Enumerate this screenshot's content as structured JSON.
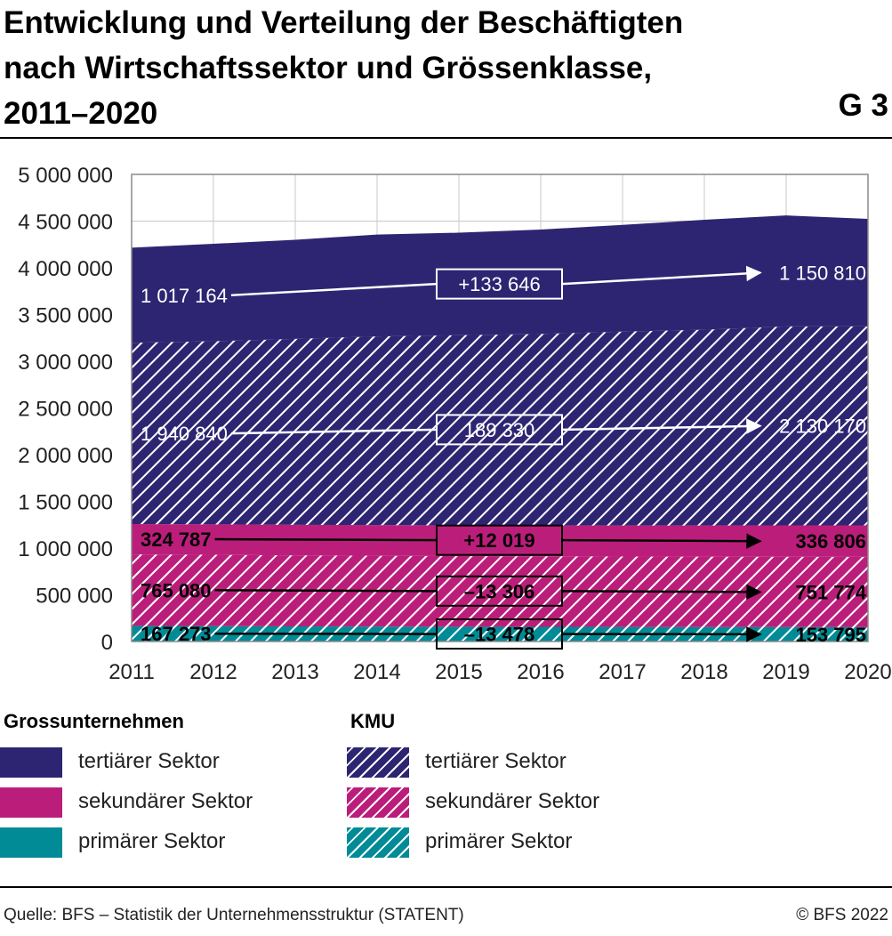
{
  "title_lines": [
    "Entwicklung und Verteilung der Beschäftigten",
    "nach Wirtschaftssektor und Grössenklasse,",
    "2011–2020"
  ],
  "figure_number": "G 3",
  "colors": {
    "tertiary": "#2e2572",
    "secondary": "#bb1e7a",
    "primary": "#008b96"
  },
  "chart_data": {
    "type": "area",
    "stacked": true,
    "x": [
      2011,
      2012,
      2013,
      2014,
      2015,
      2016,
      2017,
      2018,
      2019,
      2020
    ],
    "ylim": [
      0,
      5000000
    ],
    "yticks": [
      0,
      500000,
      1000000,
      1500000,
      2000000,
      2500000,
      3000000,
      3500000,
      4000000,
      4500000,
      5000000
    ],
    "ytick_labels": [
      "0",
      "500 000",
      "1 000 000",
      "1 500 000",
      "2 000 000",
      "2 500 000",
      "3 000 000",
      "3 500 000",
      "4 000 000",
      "4 500 000",
      "5 000 000"
    ],
    "grid": true,
    "series": [
      {
        "group": "KMU",
        "name": "primärer Sektor",
        "color": "#008b96",
        "hatched": true,
        "values": [
          167273,
          165000,
          162000,
          160000,
          158000,
          157000,
          156000,
          155000,
          154500,
          153795
        ]
      },
      {
        "group": "KMU",
        "name": "sekundärer Sektor",
        "color": "#bb1e7a",
        "hatched": true,
        "values": [
          765080,
          763000,
          760000,
          758000,
          756000,
          755000,
          754000,
          753000,
          752500,
          751774
        ]
      },
      {
        "group": "Grossunternehmen",
        "name": "sekundärer Sektor",
        "color": "#bb1e7a",
        "hatched": false,
        "values": [
          324787,
          326000,
          327000,
          328000,
          329000,
          330000,
          332000,
          334000,
          335500,
          336806
        ]
      },
      {
        "group": "KMU",
        "name": "tertiärer Sektor",
        "color": "#2e2572",
        "hatched": true,
        "values": [
          1940840,
          1960000,
          1990000,
          2020000,
          2035000,
          2050000,
          2075000,
          2095000,
          2130000,
          2130170
        ]
      },
      {
        "group": "Grossunternehmen",
        "name": "tertiärer Sektor",
        "color": "#2e2572",
        "hatched": false,
        "values": [
          1017164,
          1043000,
          1061000,
          1090000,
          1098000,
          1117000,
          1143000,
          1177000,
          1188000,
          1150810
        ]
      }
    ],
    "annotations": [
      {
        "series": 4,
        "start": "1 017 164",
        "change": "+133 646",
        "end": "1 150 810",
        "color": "#ffffff"
      },
      {
        "series": 3,
        "start": "1 940 840",
        "change": "189 330",
        "end": "2 130 170",
        "color": "#ffffff"
      },
      {
        "series": 2,
        "start": "324 787",
        "change": "+12 019",
        "end": "336 806",
        "color": "#000000"
      },
      {
        "series": 1,
        "start": "765 080",
        "change": "–13 306",
        "end": "751 774",
        "color": "#000000"
      },
      {
        "series": 0,
        "start": "167 273",
        "change": "–13 478",
        "end": "153 795",
        "color": "#000000"
      }
    ]
  },
  "legend": {
    "groups": [
      {
        "title": "Grossunternehmen",
        "items": [
          {
            "label": "tertiärer Sektor",
            "color": "#2e2572",
            "hatched": false
          },
          {
            "label": "sekundärer Sektor",
            "color": "#bb1e7a",
            "hatched": false
          },
          {
            "label": "primärer Sektor",
            "color": "#008b96",
            "hatched": false
          }
        ]
      },
      {
        "title": "KMU",
        "items": [
          {
            "label": "tertiärer Sektor",
            "color": "#2e2572",
            "hatched": true
          },
          {
            "label": "sekundärer Sektor",
            "color": "#bb1e7a",
            "hatched": true
          },
          {
            "label": "primärer Sektor",
            "color": "#008b96",
            "hatched": true
          }
        ]
      }
    ]
  },
  "footer": {
    "source": "Quelle: BFS – Statistik der Unternehmensstruktur (STATENT)",
    "copyright": "© BFS 2022"
  }
}
